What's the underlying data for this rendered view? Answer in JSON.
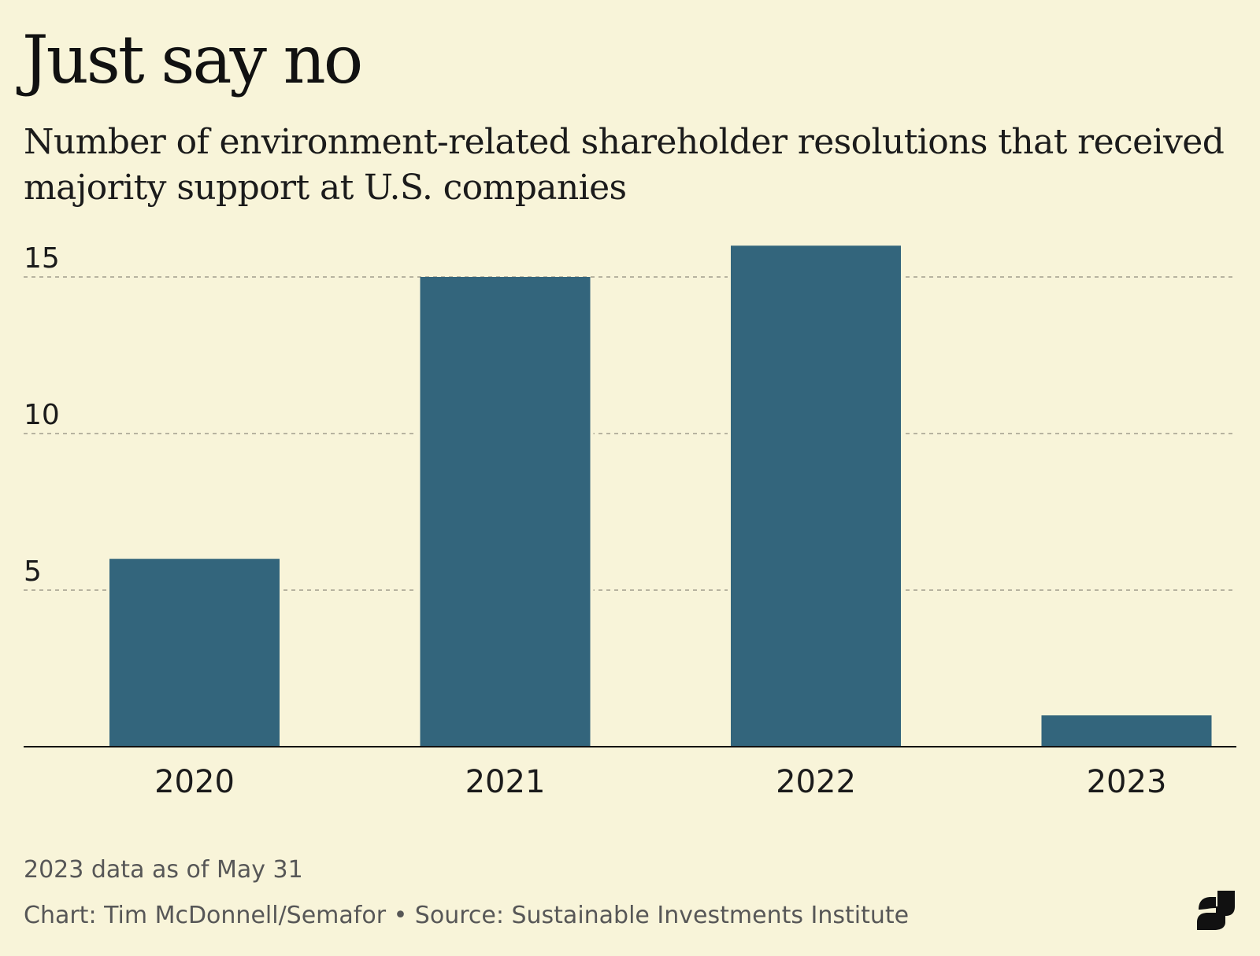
{
  "chart_data": {
    "type": "bar",
    "title": "Just say no",
    "subtitle": "Number of environment-related shareholder resolutions that received majority support at U.S. companies",
    "categories": [
      "2020",
      "2021",
      "2022",
      "2023"
    ],
    "values": [
      6,
      15,
      16,
      1
    ],
    "y_ticks": [
      "5",
      "10",
      "15"
    ],
    "ylim": [
      0,
      16
    ],
    "grid": "dashed horizontal",
    "bar_color": "#33657c",
    "note": "2023 data as of May 31",
    "credit": "Chart: Tim McDonnell/Semafor • Source: Sustainable Investments Institute"
  },
  "logo": {
    "name": "Semafor",
    "icon": "semafor-s-logo"
  },
  "colors": {
    "background": "#f8f4d9",
    "bar": "#33657c",
    "grid": "#b7b3a0",
    "axis": "#111111"
  }
}
